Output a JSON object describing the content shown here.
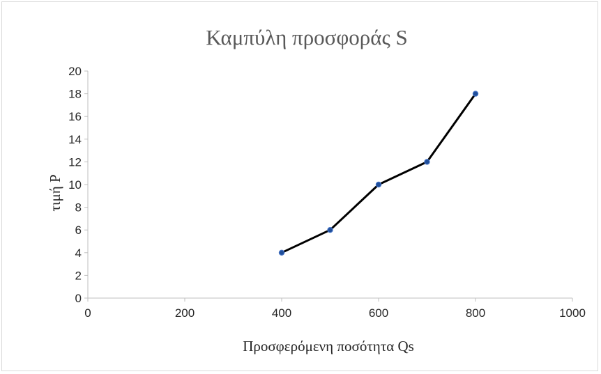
{
  "chart_data": {
    "type": "scatter",
    "title": "Καμπύλη προσφοράς S",
    "xlabel": "Προσφερόμενη ποσότητα Qs",
    "ylabel": "τιμή P",
    "xlim": [
      0,
      1000
    ],
    "ylim": [
      0,
      20
    ],
    "xticks": [
      0,
      200,
      400,
      600,
      800,
      1000
    ],
    "yticks": [
      0,
      2,
      4,
      6,
      8,
      10,
      12,
      14,
      16,
      18,
      20
    ],
    "grid": false,
    "legend": "none",
    "series": [
      {
        "x": [
          400,
          500,
          600,
          700,
          800
        ],
        "y": [
          4,
          6,
          10,
          12,
          18
        ],
        "line_color": "#000000",
        "marker_color": "#1f4e9a",
        "lines": true,
        "markers": true
      }
    ]
  }
}
